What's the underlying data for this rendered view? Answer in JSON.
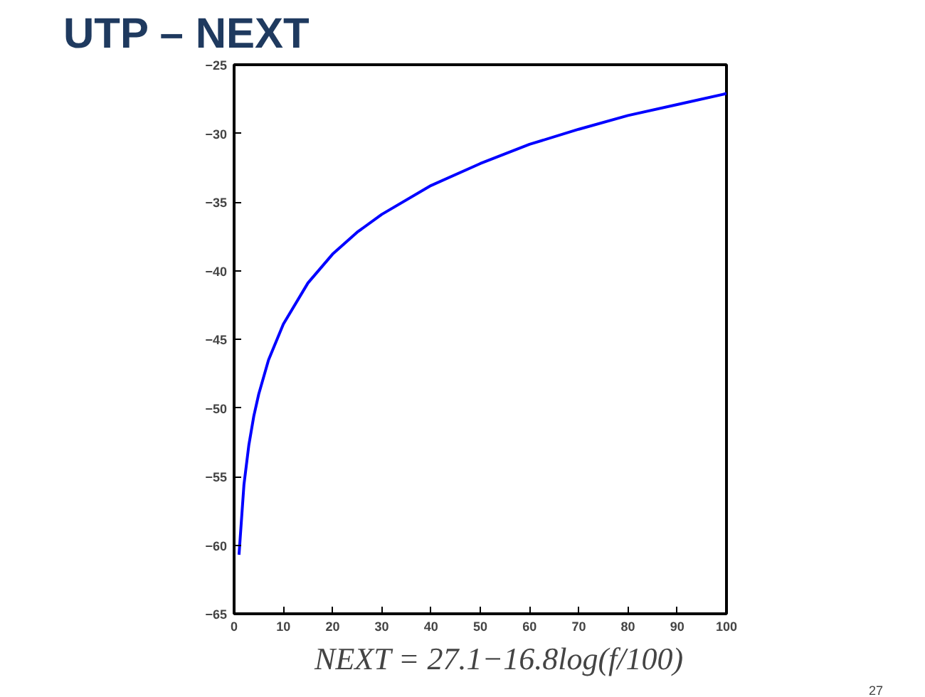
{
  "chart_data": {
    "type": "line",
    "title": "UTP – NEXT",
    "x": [
      1,
      2,
      3,
      4,
      5,
      7,
      10,
      15,
      20,
      25,
      30,
      40,
      50,
      60,
      70,
      80,
      90,
      100
    ],
    "series": [
      {
        "color": "#0000ff",
        "values": [
          -60.7,
          -55.6,
          -52.7,
          -50.6,
          -49.0,
          -46.5,
          -43.9,
          -40.9,
          -38.8,
          -37.2,
          -35.9,
          -33.8,
          -32.2,
          -30.8,
          -29.7,
          -28.7,
          -27.9,
          -27.1
        ]
      }
    ],
    "xlim": [
      0,
      100
    ],
    "xticks": [
      0,
      10,
      20,
      30,
      40,
      50,
      60,
      70,
      80,
      90,
      100
    ],
    "ylim": [
      -65,
      -25
    ],
    "yticks": [
      -65,
      -60,
      -55,
      -50,
      -45,
      -40,
      -35,
      -30,
      -25
    ],
    "grid": false,
    "marker": "none",
    "line_style": "solid",
    "annotations": [
      "NEXT = 27.1−16.8log(f/100)",
      "27"
    ]
  }
}
